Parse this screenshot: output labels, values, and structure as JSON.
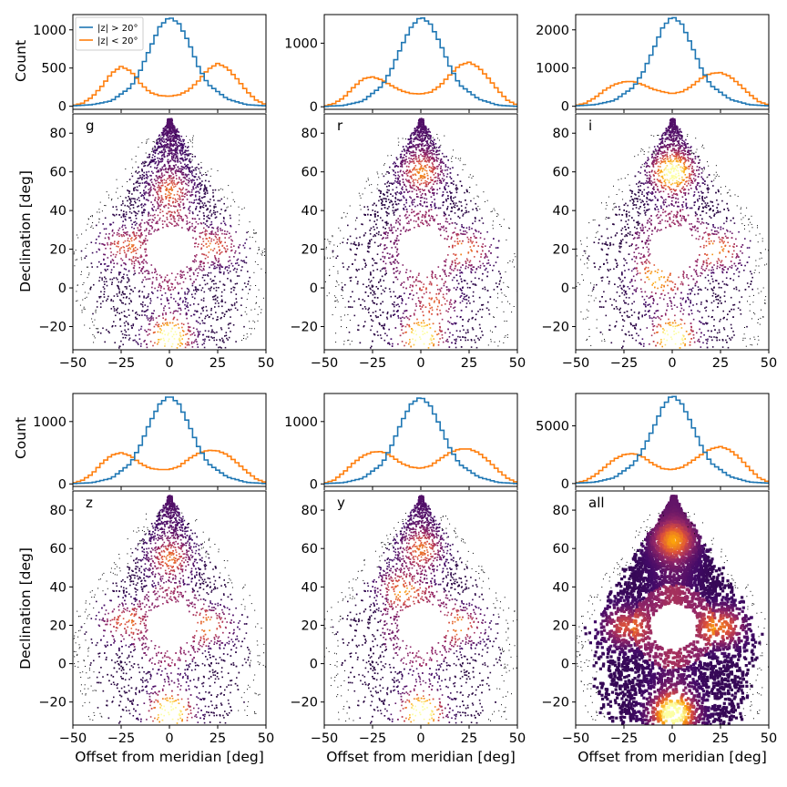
{
  "figure": {
    "count_ylabel": "Count",
    "dec_ylabel": "Declination [deg]",
    "xlabel": "Offset from meridian [deg]"
  },
  "chart_data": {
    "type": "histogram-over-density-scatter",
    "legend": [
      {
        "label": "|z| > 20°",
        "color": "#1f77b4"
      },
      {
        "label": "|z| < 20°",
        "color": "#ff7f0e"
      }
    ],
    "colormap": [
      "#000004",
      "#420a68",
      "#932667",
      "#dd513a",
      "#fca50a",
      "#fcffa4"
    ],
    "hist_xlim": [
      -50,
      50
    ],
    "scatter_xlim": [
      -50,
      50
    ],
    "scatter_ylim": [
      -32,
      90
    ],
    "x_ticks": [
      -50,
      -25,
      0,
      25,
      50
    ],
    "dec_ticks": [
      -20,
      0,
      20,
      40,
      60,
      80
    ],
    "panels": [
      {
        "band": "g",
        "hist_ylim": [
          -40,
          1200
        ],
        "count_ticks": [
          0,
          500,
          1000
        ],
        "high_lat": {
          "x": [
            -50,
            -40,
            -30,
            -20,
            -15,
            -10,
            -5,
            0,
            5,
            10,
            15,
            20,
            30,
            40,
            50
          ],
          "y": [
            5,
            20,
            70,
            250,
            470,
            760,
            1040,
            1170,
            1080,
            840,
            520,
            290,
            95,
            20,
            5
          ]
        },
        "low_lat": {
          "x": [
            -50,
            -45,
            -40,
            -35,
            -30,
            -25,
            -20,
            -15,
            -10,
            -5,
            0,
            5,
            10,
            15,
            20,
            25,
            30,
            35,
            40,
            45,
            50
          ],
          "y": [
            10,
            40,
            120,
            260,
            430,
            520,
            460,
            300,
            180,
            140,
            130,
            150,
            210,
            330,
            480,
            560,
            500,
            360,
            200,
            80,
            20
          ]
        },
        "density_hotspots": [
          {
            "x": 0,
            "y": -25,
            "level": 0.95
          },
          {
            "x": -25,
            "y": 22,
            "level": 0.5
          },
          {
            "x": 25,
            "y": 22,
            "level": 0.5
          },
          {
            "x": 0,
            "y": 50,
            "level": 0.45
          }
        ]
      },
      {
        "band": "r",
        "hist_ylim": [
          -40,
          1450
        ],
        "count_ticks": [
          0,
          1000
        ],
        "high_lat": {
          "x": [
            -50,
            -40,
            -30,
            -20,
            -15,
            -10,
            -5,
            0,
            5,
            10,
            15,
            20,
            30,
            40,
            50
          ],
          "y": [
            5,
            20,
            90,
            330,
            600,
            950,
            1250,
            1420,
            1300,
            1000,
            640,
            350,
            120,
            25,
            5
          ]
        },
        "low_lat": {
          "x": [
            -50,
            -45,
            -40,
            -35,
            -30,
            -25,
            -20,
            -15,
            -10,
            -5,
            0,
            5,
            10,
            15,
            20,
            25,
            30,
            35,
            40,
            45,
            50
          ],
          "y": [
            10,
            50,
            140,
            300,
            440,
            470,
            420,
            330,
            250,
            210,
            200,
            230,
            330,
            500,
            650,
            700,
            620,
            450,
            260,
            100,
            25
          ]
        },
        "density_hotspots": [
          {
            "x": 0,
            "y": -25,
            "level": 0.95
          },
          {
            "x": 25,
            "y": 20,
            "level": 0.55
          },
          {
            "x": 8,
            "y": -7,
            "level": 0.45
          },
          {
            "x": 0,
            "y": 60,
            "level": 0.5
          }
        ]
      },
      {
        "band": "i",
        "hist_ylim": [
          -80,
          2400
        ],
        "count_ticks": [
          0,
          1000,
          2000
        ],
        "high_lat": {
          "x": [
            -50,
            -40,
            -30,
            -20,
            -15,
            -10,
            -5,
            0,
            5,
            10,
            15,
            20,
            30,
            40,
            50
          ],
          "y": [
            10,
            40,
            150,
            500,
            900,
            1450,
            2050,
            2360,
            2150,
            1600,
            1000,
            550,
            180,
            40,
            10
          ]
        },
        "low_lat": {
          "x": [
            -50,
            -45,
            -40,
            -35,
            -30,
            -25,
            -20,
            -15,
            -10,
            -5,
            0,
            5,
            10,
            15,
            20,
            25,
            30,
            35,
            40,
            45,
            50
          ],
          "y": [
            20,
            80,
            220,
            420,
            570,
            640,
            650,
            560,
            450,
            380,
            330,
            380,
            520,
            730,
            860,
            880,
            780,
            560,
            320,
            120,
            30
          ]
        },
        "density_hotspots": [
          {
            "x": 0,
            "y": -25,
            "level": 1.0
          },
          {
            "x": 0,
            "y": 60,
            "level": 0.9
          },
          {
            "x": 25,
            "y": 20,
            "level": 0.6
          },
          {
            "x": -10,
            "y": 5,
            "level": 0.5
          }
        ]
      },
      {
        "band": "z",
        "hist_ylim": [
          -40,
          1450
        ],
        "count_ticks": [
          0,
          1000
        ],
        "high_lat": {
          "x": [
            -50,
            -40,
            -30,
            -20,
            -15,
            -10,
            -5,
            0,
            5,
            10,
            15,
            20,
            30,
            40,
            50
          ],
          "y": [
            5,
            20,
            90,
            330,
            620,
            990,
            1280,
            1420,
            1280,
            960,
            600,
            330,
            110,
            25,
            5
          ]
        },
        "low_lat": {
          "x": [
            -50,
            -45,
            -40,
            -35,
            -30,
            -25,
            -20,
            -15,
            -10,
            -5,
            0,
            5,
            10,
            15,
            20,
            25,
            30,
            35,
            40,
            45,
            50
          ],
          "y": [
            10,
            60,
            160,
            330,
            460,
            500,
            450,
            330,
            250,
            230,
            230,
            280,
            400,
            490,
            540,
            530,
            470,
            340,
            200,
            80,
            20
          ]
        },
        "density_hotspots": [
          {
            "x": 0,
            "y": -25,
            "level": 1.0
          },
          {
            "x": -25,
            "y": 22,
            "level": 0.5
          },
          {
            "x": 22,
            "y": 20,
            "level": 0.5
          },
          {
            "x": 0,
            "y": 55,
            "level": 0.45
          }
        ]
      },
      {
        "band": "y",
        "hist_ylim": [
          -40,
          1450
        ],
        "count_ticks": [
          0,
          1000
        ],
        "high_lat": {
          "x": [
            -50,
            -40,
            -30,
            -20,
            -15,
            -10,
            -5,
            0,
            5,
            10,
            15,
            20,
            30,
            40,
            50
          ],
          "y": [
            5,
            20,
            90,
            320,
            620,
            990,
            1280,
            1400,
            1250,
            930,
            580,
            320,
            110,
            25,
            5
          ]
        },
        "low_lat": {
          "x": [
            -50,
            -45,
            -40,
            -35,
            -30,
            -25,
            -20,
            -15,
            -10,
            -5,
            0,
            5,
            10,
            15,
            20,
            25,
            30,
            35,
            40,
            45,
            50
          ],
          "y": [
            10,
            60,
            180,
            330,
            450,
            510,
            520,
            440,
            330,
            270,
            250,
            290,
            400,
            500,
            560,
            560,
            500,
            370,
            220,
            90,
            20
          ]
        },
        "density_hotspots": [
          {
            "x": 0,
            "y": -25,
            "level": 1.0
          },
          {
            "x": -12,
            "y": 40,
            "level": 0.5
          },
          {
            "x": 22,
            "y": 20,
            "level": 0.5
          },
          {
            "x": 0,
            "y": 60,
            "level": 0.45
          }
        ]
      },
      {
        "band": "all",
        "hist_ylim": [
          -250,
          7800
        ],
        "count_ticks": [
          0,
          5000
        ],
        "high_lat": {
          "x": [
            -50,
            -40,
            -30,
            -20,
            -15,
            -10,
            -5,
            0,
            5,
            10,
            15,
            20,
            30,
            40,
            50
          ],
          "y": [
            30,
            120,
            500,
            1700,
            3000,
            4700,
            6600,
            7700,
            6900,
            5200,
            3300,
            1800,
            600,
            130,
            30
          ]
        },
        "low_lat": {
          "x": [
            -50,
            -45,
            -40,
            -35,
            -30,
            -25,
            -20,
            -15,
            -10,
            -5,
            0,
            5,
            10,
            15,
            20,
            25,
            30,
            35,
            40,
            45,
            50
          ],
          "y": [
            50,
            250,
            700,
            1400,
            2100,
            2500,
            2600,
            2300,
            1700,
            1300,
            1200,
            1400,
            1900,
            2500,
            3000,
            3200,
            2900,
            2200,
            1300,
            500,
            120
          ]
        },
        "density_hotspots": [
          {
            "x": 0,
            "y": -25,
            "level": 1.0
          },
          {
            "x": 25,
            "y": 20,
            "level": 0.55
          },
          {
            "x": 0,
            "y": 65,
            "level": 0.55
          },
          {
            "x": -25,
            "y": 20,
            "level": 0.45
          }
        ]
      }
    ]
  }
}
